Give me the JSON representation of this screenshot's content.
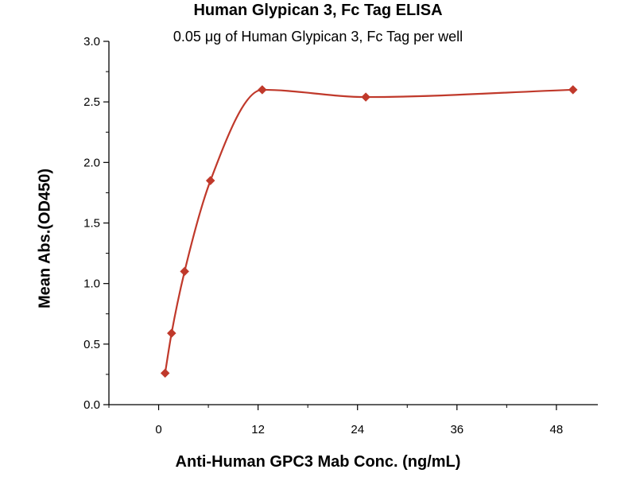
{
  "chart_data": {
    "type": "scatter",
    "title": "Human Glypican 3, Fc Tag ELISA",
    "subtitle": "0.05 μg of Human Glypican 3, Fc Tag per well",
    "xlabel": "Anti-Human GPC3 Mab Conc. (ng/mL)",
    "ylabel": "Mean Abs.(OD450)",
    "xlim": [
      -6,
      53
    ],
    "ylim": [
      0,
      3.0
    ],
    "xticks": [
      0,
      12,
      24,
      36,
      48
    ],
    "yticks": [
      0.0,
      0.5,
      1.0,
      1.5,
      2.0,
      2.5,
      3.0
    ],
    "ytick_labels": [
      "0.0",
      "0.5",
      "1.0",
      "1.5",
      "2.0",
      "2.5",
      "3.0"
    ],
    "series": [
      {
        "x": [
          0.78,
          1.56,
          3.13,
          6.25,
          12.5,
          25,
          50
        ],
        "y": [
          0.26,
          0.59,
          1.1,
          1.85,
          2.6,
          2.54,
          2.6
        ],
        "color": "#c0392b",
        "marker": "diamond",
        "fit": "curve"
      }
    ],
    "grid": false,
    "legend": "none"
  }
}
